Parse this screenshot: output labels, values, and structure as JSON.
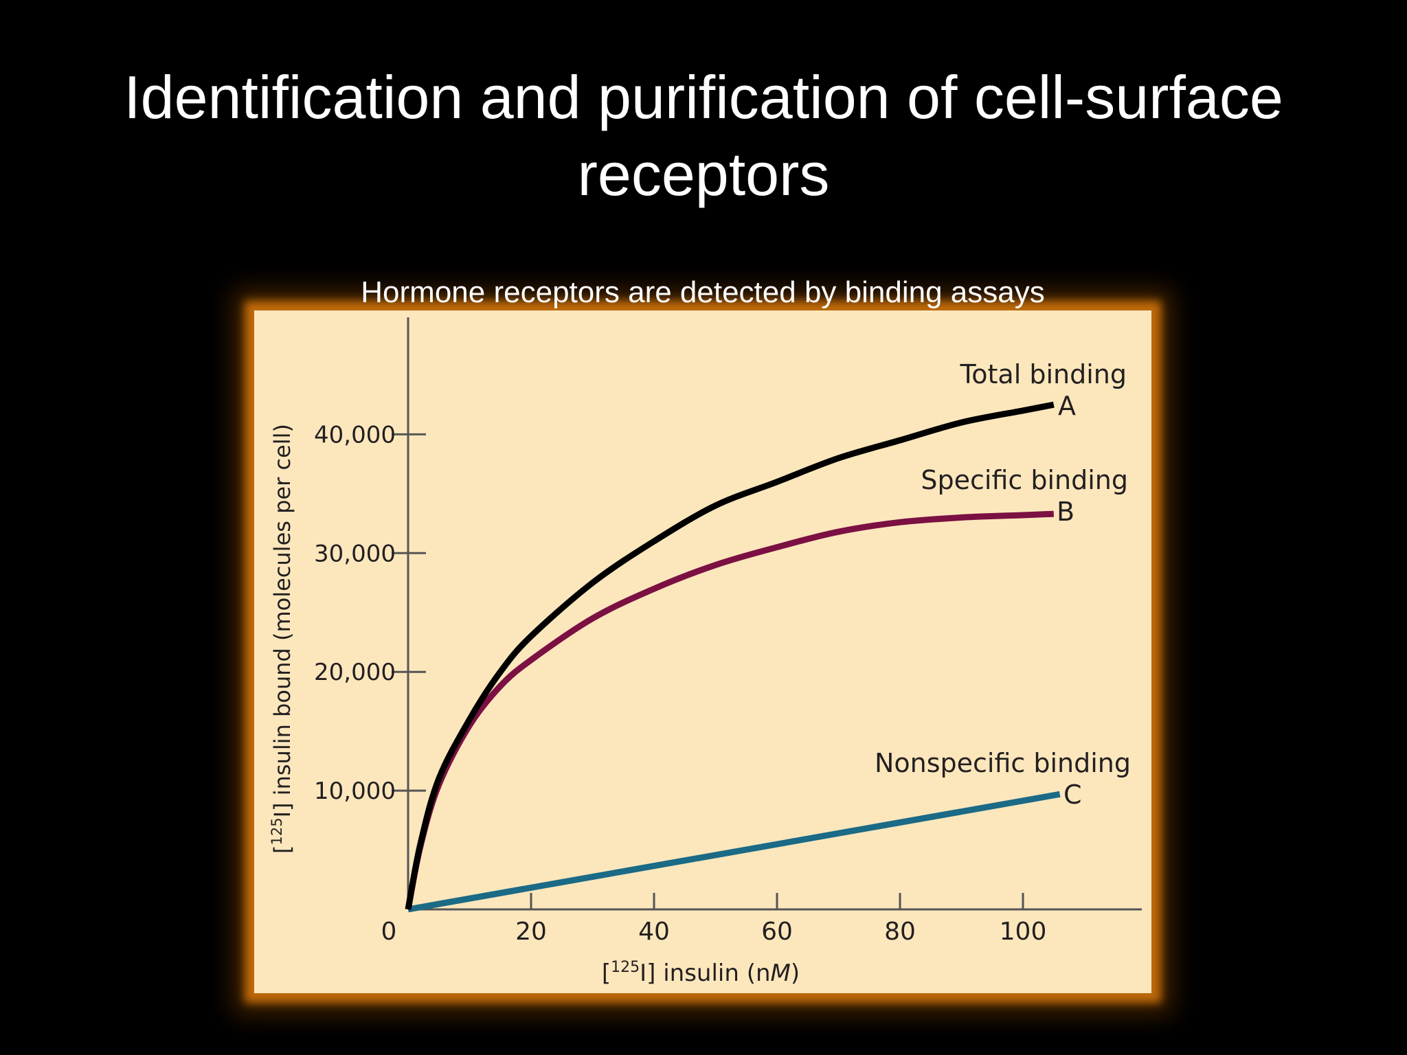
{
  "slide": {
    "title": "Identification and purification of cell-surface receptors",
    "subtitle": "Hormone receptors are detected by binding assays"
  },
  "colors": {
    "background": "#000000",
    "plot_area": "#fce7bd",
    "frame_glow": "#c46e0a",
    "total_binding": "#000000",
    "specific_binding": "#7b1043",
    "nonspecific_binding": "#1b6a86"
  },
  "chart_data": {
    "type": "line",
    "xlabel_prefix": "[",
    "xlabel_sup": "125",
    "xlabel_mid": "I] insulin (n",
    "xlabel_italic": "M",
    "xlabel_suffix": ")",
    "ylabel_prefix": "[",
    "ylabel_sup": "125",
    "ylabel_rest": "I] insulin bound (molecules per cell)",
    "origin_label": "0",
    "xlim": [
      0,
      120
    ],
    "ylim": [
      0,
      50000
    ],
    "x_ticks": [
      20,
      40,
      60,
      80,
      100
    ],
    "x_tick_labels": [
      "20",
      "40",
      "60",
      "80",
      "100"
    ],
    "y_ticks": [
      10000,
      20000,
      30000,
      40000
    ],
    "y_tick_labels": [
      "10,000",
      "20,000",
      "30,000",
      "40,000"
    ],
    "grid": false,
    "series": [
      {
        "key": "A",
        "name": "Total binding",
        "letter": "A",
        "color": "#000000",
        "x": [
          0,
          2,
          5,
          10,
          15,
          20,
          30,
          40,
          50,
          60,
          70,
          80,
          90,
          100,
          105
        ],
        "y": [
          0,
          5500,
          11000,
          16000,
          20000,
          23000,
          27500,
          31000,
          34000,
          36000,
          38000,
          39500,
          41000,
          42000,
          42500
        ]
      },
      {
        "key": "B",
        "name": "Specific binding",
        "letter": "B",
        "color": "#7b1043",
        "x": [
          0,
          2,
          5,
          10,
          15,
          20,
          30,
          40,
          50,
          60,
          70,
          80,
          90,
          100,
          105
        ],
        "y": [
          0,
          5300,
          10500,
          15500,
          18800,
          21000,
          24500,
          27000,
          29000,
          30500,
          31800,
          32600,
          33000,
          33200,
          33300
        ]
      },
      {
        "key": "C",
        "name": "Nonspecific binding",
        "letter": "C",
        "color": "#1b6a86",
        "x": [
          0,
          106
        ],
        "y": [
          0,
          9700
        ]
      }
    ]
  }
}
